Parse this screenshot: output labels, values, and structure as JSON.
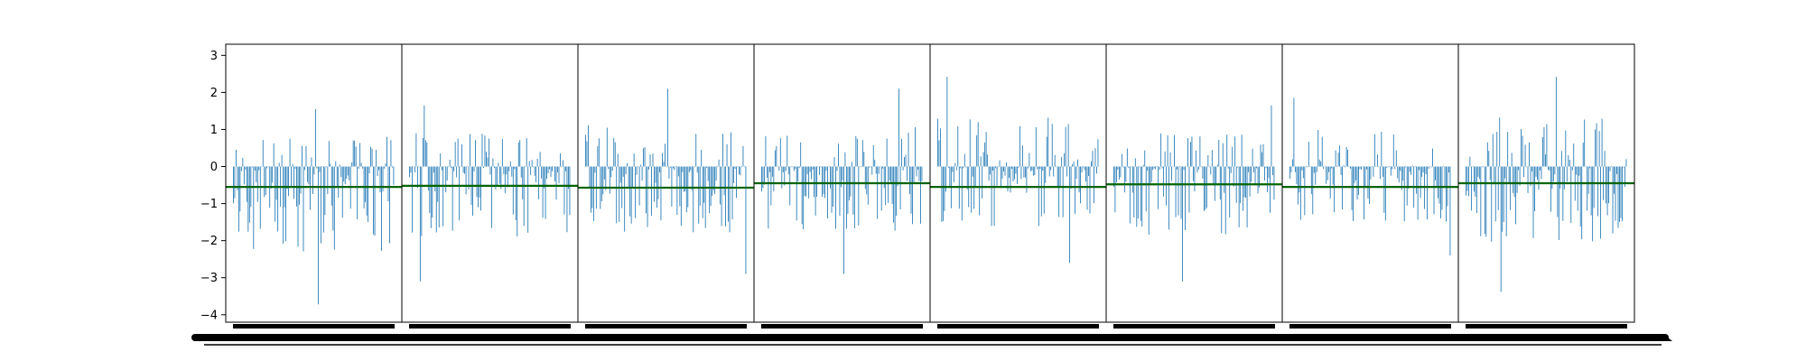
{
  "chart_data": {
    "type": "bar",
    "title": "",
    "xlabel": "",
    "ylabel": "",
    "ylim": [
      -4.2,
      3.3
    ],
    "yticks": [
      3,
      2,
      1,
      0,
      -1,
      -2,
      -3,
      -4
    ],
    "ytick_labels": [
      "3",
      "2",
      "1",
      "0",
      "−1",
      "−2",
      "−3",
      "−4"
    ],
    "grid": false,
    "legend": "none",
    "bar_color": "#1f77b4",
    "mean_line_color": "#006400",
    "panels": [
      {
        "panel": 1,
        "n_bars": 120,
        "mean": -0.55,
        "max": 1.55,
        "min": -3.72,
        "seed": 11
      },
      {
        "panel": 2,
        "n_bars": 120,
        "mean": -0.52,
        "max": 1.65,
        "min": -3.1,
        "seed": 23
      },
      {
        "panel": 3,
        "n_bars": 120,
        "mean": -0.57,
        "max": 2.1,
        "min": -2.9,
        "seed": 37
      },
      {
        "panel": 4,
        "n_bars": 120,
        "mean": -0.45,
        "max": 2.1,
        "min": -2.9,
        "seed": 41
      },
      {
        "panel": 5,
        "n_bars": 120,
        "mean": -0.55,
        "max": 2.42,
        "min": -2.6,
        "seed": 53
      },
      {
        "panel": 6,
        "n_bars": 120,
        "mean": -0.48,
        "max": 1.65,
        "min": -3.1,
        "seed": 67
      },
      {
        "panel": 7,
        "n_bars": 120,
        "mean": -0.55,
        "max": 1.85,
        "min": -2.4,
        "seed": 79
      },
      {
        "panel": 8,
        "n_bars": 120,
        "mean": -0.45,
        "max": 2.42,
        "min": -3.38,
        "seed": 97
      }
    ]
  }
}
